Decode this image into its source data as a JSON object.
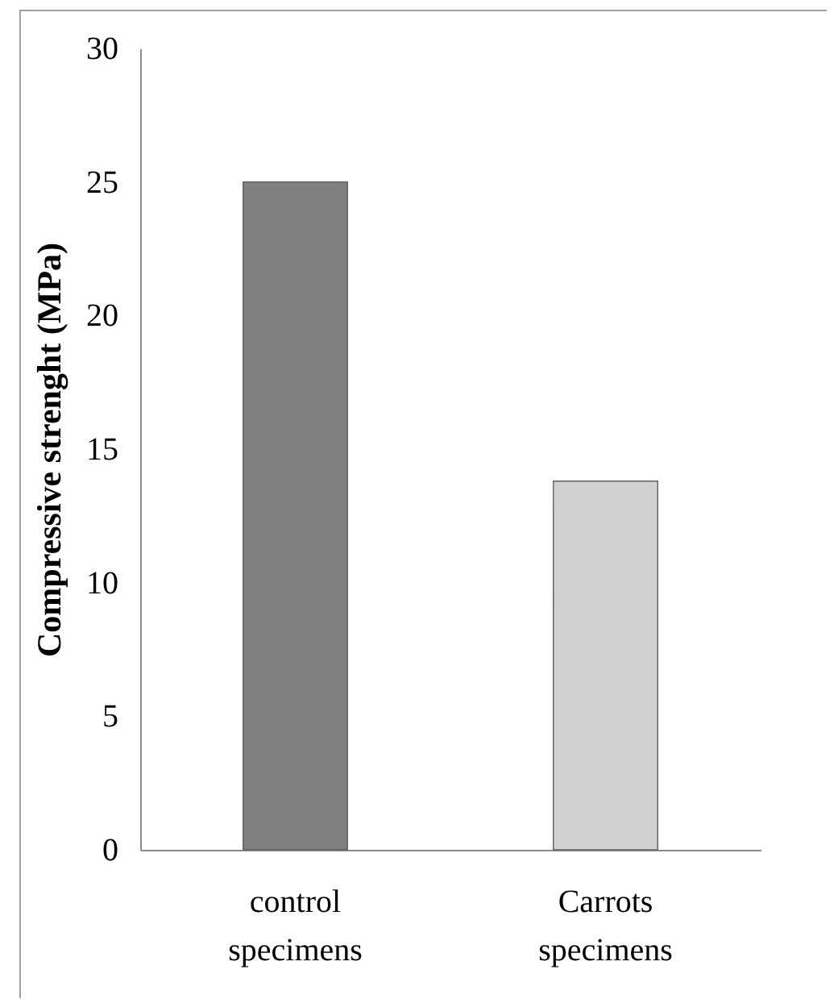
{
  "chart_data": {
    "type": "bar",
    "ylabel": "Compressive strenght (MPa)",
    "categories": [
      "control specimens",
      "Carrots specimens"
    ],
    "values": [
      25,
      13.8
    ],
    "colors": [
      "#7f7f7f",
      "#d0d0d0"
    ],
    "ylim": [
      0,
      30
    ],
    "yticks": [
      0,
      5,
      10,
      15,
      20,
      25,
      30
    ],
    "grid": false
  }
}
